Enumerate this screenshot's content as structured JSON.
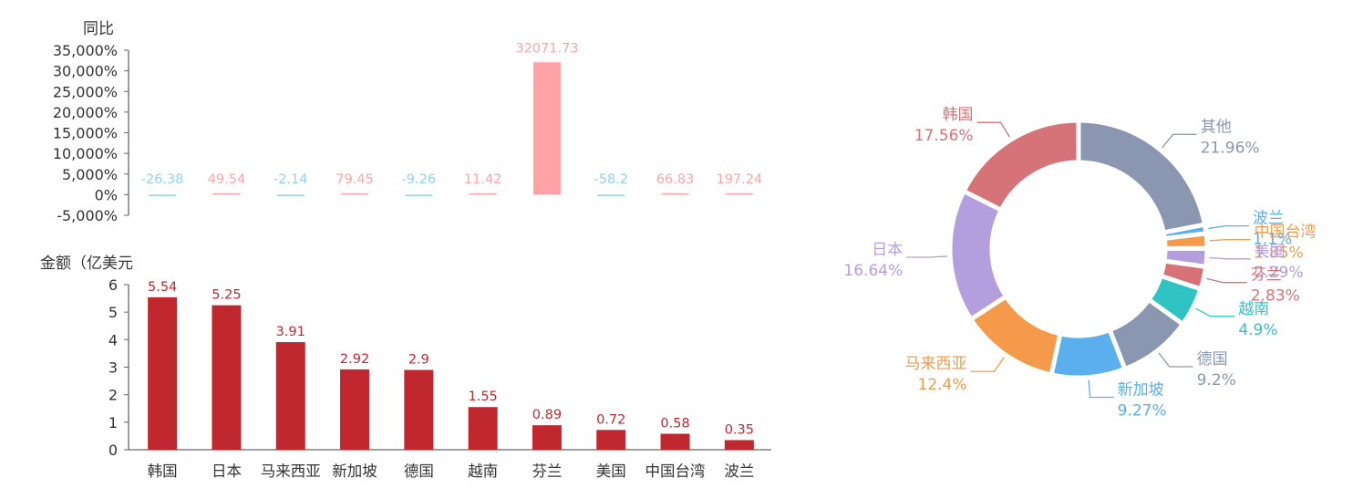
{
  "chart_data": [
    {
      "type": "bar",
      "ylabel": "同比",
      "ylim": [
        -5000,
        35000
      ],
      "yticks": [
        "35,000%",
        "30,000%",
        "25,000%",
        "20,000%",
        "15,000%",
        "10,000%",
        "5,000%",
        "0%",
        "-5,000%"
      ],
      "categories": [
        "韩国",
        "日本",
        "马来西亚",
        "新加坡",
        "德国",
        "越南",
        "芬兰",
        "美国",
        "中国台湾",
        "波兰"
      ],
      "values": [
        -26.38,
        49.54,
        -2.14,
        79.45,
        -9.26,
        11.42,
        32071.73,
        -58.2,
        66.83,
        197.24
      ],
      "labels": [
        "-26.38",
        "49.54",
        "-2.14",
        "79.45",
        "-9.26",
        "11.42",
        "32071.73",
        "-58.2",
        "66.83",
        "197.24"
      ],
      "colors": {
        "positive": "#ffa3a6",
        "negative": "#8fd0f5"
      }
    },
    {
      "type": "bar",
      "ylabel": "金额（亿美元",
      "ylim": [
        0,
        6
      ],
      "yticks": [
        "6",
        "5",
        "4",
        "3",
        "2",
        "1",
        "0"
      ],
      "categories": [
        "韩国",
        "日本",
        "马来西亚",
        "新加坡",
        "德国",
        "越南",
        "芬兰",
        "美国",
        "中国台湾",
        "波兰"
      ],
      "values": [
        5.54,
        5.25,
        3.91,
        2.92,
        2.9,
        1.55,
        0.89,
        0.72,
        0.58,
        0.35
      ],
      "labels": [
        "5.54",
        "5.25",
        "3.91",
        "2.92",
        "2.9",
        "1.55",
        "0.89",
        "0.72",
        "0.58",
        "0.35"
      ],
      "color": "#c0272f"
    },
    {
      "type": "pie",
      "donut": true,
      "slices": [
        {
          "name": "其他",
          "value": 21.96,
          "label": "21.96%",
          "color": "#8b97b1"
        },
        {
          "name": "波兰",
          "value": 1.1,
          "label": "1.1%",
          "color": "#5aafec"
        },
        {
          "name": "中国台湾",
          "value": 1.85,
          "label": "1.85%",
          "color": "#f49a4a"
        },
        {
          "name": "美国",
          "value": 2.29,
          "label": "2.29%",
          "color": "#b49ede"
        },
        {
          "name": "芬兰",
          "value": 2.83,
          "label": "2.83%",
          "color": "#d57379"
        },
        {
          "name": "越南",
          "value": 4.9,
          "label": "4.9%",
          "color": "#2ec4c4"
        },
        {
          "name": "德国",
          "value": 9.2,
          "label": "9.2%",
          "color": "#8b97b1"
        },
        {
          "name": "新加坡",
          "value": 9.27,
          "label": "9.27%",
          "color": "#5aafec"
        },
        {
          "name": "马来西亚",
          "value": 12.4,
          "label": "12.4%",
          "color": "#f49a4a"
        },
        {
          "name": "日本",
          "value": 16.64,
          "label": "16.64%",
          "color": "#b49ede"
        },
        {
          "name": "韩国",
          "value": 17.56,
          "label": "17.56%",
          "color": "#d57379"
        }
      ]
    }
  ]
}
